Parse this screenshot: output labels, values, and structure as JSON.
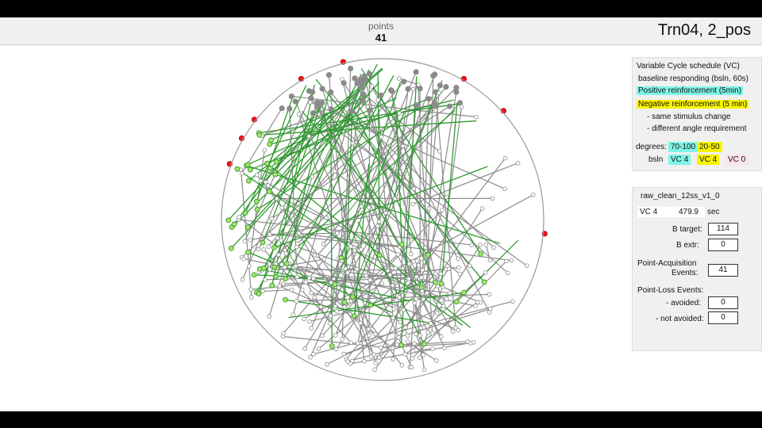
{
  "header": {
    "points_label": "points",
    "points_value": "41",
    "run_title": "Trn04, 2_pos"
  },
  "schedule_panel": {
    "title": "Variable Cycle schedule (VC)",
    "baseline": "baseline responding (bsln, 60s)",
    "positive": "Positive reinforcement (5min)",
    "negative": "Negative reinforcement (5 min)",
    "same_stimulus": "- same stimulus change",
    "different_angle": "- different angle requirement",
    "degrees_label": "degrees:",
    "deg_pos": "70-100",
    "deg_neg": "20-50",
    "bsln_label": "bsln",
    "vc_pos": "VC 4",
    "vc_neg": "VC 4",
    "vc_zero": "VC 0"
  },
  "session_panel": {
    "file_name": "raw_clean_12ss_v1_0",
    "vc_label": "VC 4",
    "time_value": "479.9",
    "time_unit": "sec",
    "b_target_label": "B target:",
    "b_target_value": "114",
    "b_extr_label": "B extr:",
    "b_extr_value": "0",
    "acq_label_1": "Point-Acquisition",
    "acq_label_2": "Events:",
    "acq_value": "41",
    "loss_label": "Point-Loss Events:",
    "avoided_label": "- avoided:",
    "avoided_value": "0",
    "not_avoided_label": "- not avoided:",
    "not_avoided_value": "0"
  },
  "colors": {
    "green_line": "#2e9a2e",
    "grey_line": "#8c8c8c",
    "red_point": "#e8151b",
    "green_point": "#9be86b",
    "cyan": "#7ff5e8",
    "yellow": "#f8f400"
  },
  "icons": {
    "arena": "circular-arena-trajectory-plot"
  }
}
